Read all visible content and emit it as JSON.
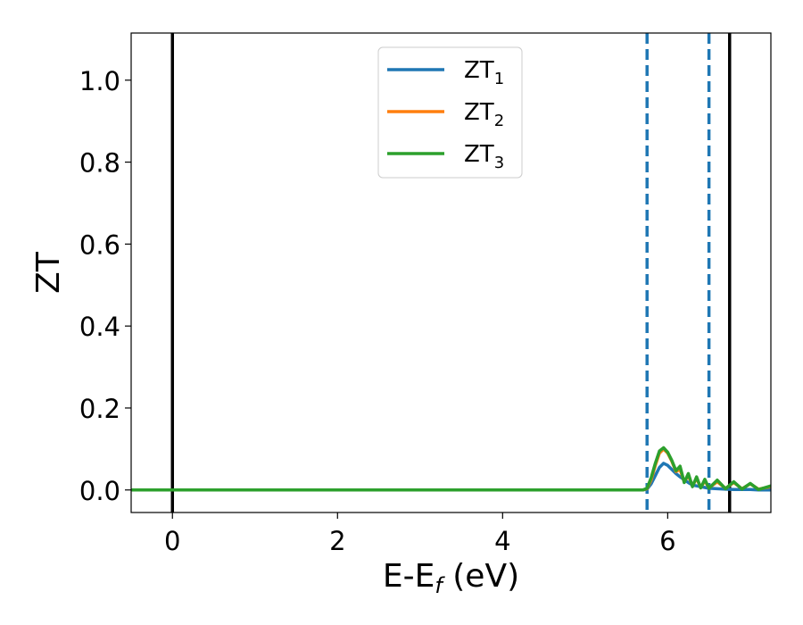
{
  "chart_data": {
    "type": "line",
    "xlabel_main": "E-E",
    "xlabel_sub": "f",
    "xlabel_unit": " (eV)",
    "ylabel": "ZT",
    "xlim": [
      -0.5,
      7.25
    ],
    "ylim": [
      -0.055,
      1.115
    ],
    "xticks": [
      0,
      2,
      4,
      6
    ],
    "xtick_labels": [
      "0",
      "2",
      "4",
      "6"
    ],
    "yticks": [
      0.0,
      0.2,
      0.4,
      0.6,
      0.8,
      1.0
    ],
    "ytick_labels": [
      "0.0",
      "0.2",
      "0.4",
      "0.6",
      "0.8",
      "1.0"
    ],
    "grid": false,
    "legend_position": "top-center",
    "reference_lines": [
      {
        "x": 0.0,
        "style": "solid",
        "color": "#000000"
      },
      {
        "x": 6.75,
        "style": "solid",
        "color": "#000000"
      },
      {
        "x": 5.75,
        "style": "dashed",
        "color": "#1f77b4"
      },
      {
        "x": 6.5,
        "style": "dashed",
        "color": "#1f77b4"
      }
    ],
    "series": [
      {
        "name": "ZT",
        "subscript": "1",
        "color": "#1f77b4",
        "x": [
          -0.5,
          5.7,
          5.75,
          5.8,
          5.85,
          5.9,
          5.95,
          6.0,
          6.05,
          6.1,
          6.15,
          6.2,
          6.25,
          6.3,
          6.35,
          6.4,
          6.45,
          6.5,
          6.6,
          6.7,
          6.8,
          6.9,
          7.0,
          7.1,
          7.25
        ],
        "y": [
          0.0,
          0.0,
          0.002,
          0.015,
          0.035,
          0.055,
          0.065,
          0.06,
          0.05,
          0.04,
          0.032,
          0.025,
          0.018,
          0.012,
          0.01,
          0.008,
          0.006,
          0.004,
          0.003,
          0.002,
          0.001,
          0.001,
          0.001,
          0.0,
          0.0
        ]
      },
      {
        "name": "ZT",
        "subscript": "2",
        "color": "#ff7f0e",
        "x": [
          -0.5,
          5.7,
          5.75,
          5.8,
          5.85,
          5.9,
          5.95,
          6.0,
          6.05,
          6.1,
          6.15,
          6.2,
          6.25,
          6.3,
          6.35,
          6.4,
          6.45,
          6.5,
          6.6,
          6.7,
          6.8,
          6.9,
          7.0,
          7.1,
          7.25
        ],
        "y": [
          0.0,
          0.0,
          0.003,
          0.025,
          0.06,
          0.09,
          0.1,
          0.09,
          0.07,
          0.045,
          0.05,
          0.02,
          0.035,
          0.01,
          0.028,
          0.006,
          0.022,
          0.005,
          0.02,
          0.004,
          0.018,
          0.003,
          0.015,
          0.002,
          0.008
        ]
      },
      {
        "name": "ZT",
        "subscript": "3",
        "color": "#2ca02c",
        "x": [
          -0.5,
          5.7,
          5.75,
          5.8,
          5.85,
          5.9,
          5.95,
          6.0,
          6.05,
          6.1,
          6.15,
          6.2,
          6.25,
          6.3,
          6.35,
          6.4,
          6.45,
          6.5,
          6.6,
          6.7,
          6.8,
          6.9,
          7.0,
          7.1,
          7.25
        ],
        "y": [
          0.0,
          0.0,
          0.004,
          0.03,
          0.065,
          0.095,
          0.103,
          0.092,
          0.072,
          0.047,
          0.058,
          0.018,
          0.04,
          0.008,
          0.032,
          0.005,
          0.026,
          0.004,
          0.024,
          0.003,
          0.02,
          0.002,
          0.016,
          0.001,
          0.01
        ]
      }
    ]
  }
}
